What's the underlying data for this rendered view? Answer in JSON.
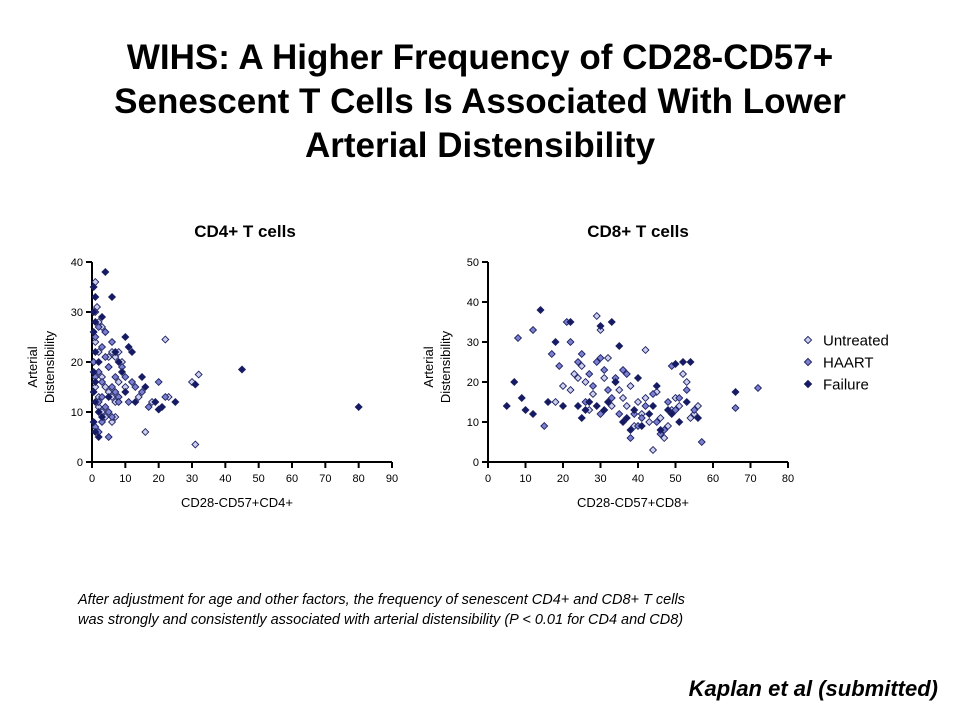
{
  "slide": {
    "title_lines": [
      "WIHS: A Higher Frequency of CD28-CD57+",
      "Senescent T Cells Is Associated With Lower",
      "Arterial Distensibility"
    ],
    "caption_lines": [
      "After adjustment for age and other factors, the frequency of senescent CD4+ and CD8+ T cells",
      "was strongly and consistently associated with arterial distensibility (P < 0.01 for CD4 and CD8)"
    ],
    "citation": "Kaplan et al (submitted)"
  },
  "colors": {
    "Untreated": "#ccd0ee",
    "HAART": "#7a7fd0",
    "Failure": "#141a66",
    "outline": "#1c2060"
  },
  "legend": {
    "placement": "right of CD8+ chart",
    "entries": [
      "Untreated",
      "HAART",
      "Failure"
    ]
  },
  "chart_data": [
    {
      "type": "scatter",
      "title": "CD4+ T cells",
      "xlabel": "CD28-CD57+CD4+",
      "ylabel": [
        "Arterial",
        "Distensibility"
      ],
      "xlim": [
        0,
        90
      ],
      "ylim": [
        0,
        40
      ],
      "xticks": [
        0,
        10,
        20,
        30,
        40,
        50,
        60,
        70,
        80,
        90
      ],
      "yticks": [
        0,
        10,
        20,
        30,
        40
      ],
      "grid": false,
      "series": [
        {
          "name": "Untreated",
          "points": [
            [
              1,
              36
            ],
            [
              1.5,
              31
            ],
            [
              2,
              28
            ],
            [
              3,
              27
            ],
            [
              4,
              26
            ],
            [
              1,
              24
            ],
            [
              2,
              22
            ],
            [
              5,
              21
            ],
            [
              6,
              22
            ],
            [
              7,
              21
            ],
            [
              8,
              22
            ],
            [
              9,
              20
            ],
            [
              3,
              17
            ],
            [
              4,
              15
            ],
            [
              5,
              14
            ],
            [
              6,
              13
            ],
            [
              7,
              12
            ],
            [
              2,
              11
            ],
            [
              3,
              10
            ],
            [
              4,
              9
            ],
            [
              6,
              8
            ],
            [
              5,
              19
            ],
            [
              8,
              16
            ],
            [
              10,
              15
            ],
            [
              14,
              13
            ],
            [
              16,
              6
            ],
            [
              18,
              12
            ],
            [
              22,
              24.5
            ],
            [
              23,
              13
            ],
            [
              30,
              16
            ],
            [
              31,
              3.5
            ],
            [
              32,
              17.5
            ],
            [
              1,
              15
            ],
            [
              2,
              13
            ],
            [
              7,
              9
            ]
          ]
        },
        {
          "name": "HAART",
          "points": [
            [
              1,
              30
            ],
            [
              2,
              27
            ],
            [
              1,
              25
            ],
            [
              3,
              23
            ],
            [
              4,
              21
            ],
            [
              5,
              19
            ],
            [
              2,
              18
            ],
            [
              1,
              17
            ],
            [
              3,
              16
            ],
            [
              6,
              15
            ],
            [
              7,
              14
            ],
            [
              8,
              13
            ],
            [
              2,
              12
            ],
            [
              4,
              11
            ],
            [
              5,
              10
            ],
            [
              6,
              9
            ],
            [
              3,
              8
            ],
            [
              1,
              7
            ],
            [
              2,
              6
            ],
            [
              5,
              5
            ],
            [
              9,
              19
            ],
            [
              10,
              17
            ],
            [
              12,
              16
            ],
            [
              13,
              15
            ],
            [
              15,
              14
            ],
            [
              20,
              16
            ],
            [
              4,
              26
            ],
            [
              6,
              24
            ],
            [
              8,
              12
            ],
            [
              11,
              12
            ],
            [
              17,
              11
            ],
            [
              22,
              13
            ],
            [
              0.5,
              20
            ],
            [
              3,
              13
            ],
            [
              7,
              17
            ]
          ]
        },
        {
          "name": "Failure",
          "points": [
            [
              0.5,
              35
            ],
            [
              1,
              33
            ],
            [
              0.5,
              30
            ],
            [
              1,
              28
            ],
            [
              0.5,
              26
            ],
            [
              1,
              22
            ],
            [
              2,
              20
            ],
            [
              0.5,
              18
            ],
            [
              1,
              16
            ],
            [
              0.5,
              14
            ],
            [
              1,
              12
            ],
            [
              2,
              10
            ],
            [
              3,
              9
            ],
            [
              0.5,
              8
            ],
            [
              1,
              6
            ],
            [
              2,
              5
            ],
            [
              4,
              38
            ],
            [
              6,
              33
            ],
            [
              10,
              25
            ],
            [
              11,
              23
            ],
            [
              12,
              22
            ],
            [
              8,
              20
            ],
            [
              9,
              18
            ],
            [
              10,
              14
            ],
            [
              15,
              17
            ],
            [
              16,
              15
            ],
            [
              19,
              12
            ],
            [
              21,
              11
            ],
            [
              25,
              12
            ],
            [
              31,
              15.5
            ],
            [
              45,
              18.5
            ],
            [
              80,
              11
            ],
            [
              3,
              29
            ],
            [
              5,
              13
            ],
            [
              7,
              22
            ],
            [
              13,
              12
            ],
            [
              20,
              10.5
            ]
          ]
        }
      ]
    },
    {
      "type": "scatter",
      "title": "CD8+ T cells",
      "xlabel": "CD28-CD57+CD8+",
      "ylabel": [
        "Arterial",
        "Distensibility"
      ],
      "xlim": [
        0,
        80
      ],
      "ylim": [
        0,
        50
      ],
      "xticks": [
        0,
        10,
        20,
        30,
        40,
        50,
        60,
        70,
        80
      ],
      "yticks": [
        0,
        10,
        20,
        30,
        40,
        50
      ],
      "grid": false,
      "series": [
        {
          "name": "Untreated",
          "points": [
            [
              18,
              15
            ],
            [
              20,
              19
            ],
            [
              22,
              18
            ],
            [
              23,
              22
            ],
            [
              24,
              21
            ],
            [
              25,
              24
            ],
            [
              26,
              20
            ],
            [
              28,
              17
            ],
            [
              29,
              36.5
            ],
            [
              30,
              33
            ],
            [
              31,
              21
            ],
            [
              32,
              26
            ],
            [
              34,
              20
            ],
            [
              35,
              18
            ],
            [
              36,
              16
            ],
            [
              37,
              14
            ],
            [
              38,
              19
            ],
            [
              40,
              15
            ],
            [
              41,
              12
            ],
            [
              42,
              16
            ],
            [
              43,
              10
            ],
            [
              44,
              3
            ],
            [
              45,
              17.5
            ],
            [
              46,
              11
            ],
            [
              47,
              6
            ],
            [
              48,
              9
            ],
            [
              49,
              13
            ],
            [
              50,
              16
            ],
            [
              51,
              14
            ],
            [
              52,
              22
            ],
            [
              53,
              20
            ],
            [
              55,
              12
            ],
            [
              56,
              14
            ],
            [
              27,
              13
            ],
            [
              33,
              14
            ],
            [
              39,
              9
            ],
            [
              54,
              11
            ],
            [
              42,
              28
            ]
          ]
        },
        {
          "name": "HAART",
          "points": [
            [
              8,
              31
            ],
            [
              12,
              33
            ],
            [
              15,
              9
            ],
            [
              17,
              27
            ],
            [
              19,
              24
            ],
            [
              21,
              35
            ],
            [
              22,
              30
            ],
            [
              24,
              25
            ],
            [
              25,
              27
            ],
            [
              26,
              15
            ],
            [
              27,
              22
            ],
            [
              28,
              19
            ],
            [
              29,
              25
            ],
            [
              30,
              26
            ],
            [
              31,
              23
            ],
            [
              32,
              18
            ],
            [
              33,
              16
            ],
            [
              34,
              21
            ],
            [
              35,
              12
            ],
            [
              36,
              23
            ],
            [
              37,
              22
            ],
            [
              38,
              6
            ],
            [
              39,
              12
            ],
            [
              40,
              9
            ],
            [
              41,
              11
            ],
            [
              42,
              14
            ],
            [
              45,
              10
            ],
            [
              46,
              7
            ],
            [
              47,
              8
            ],
            [
              48,
              15
            ],
            [
              49,
              24
            ],
            [
              50,
              13
            ],
            [
              51,
              16
            ],
            [
              53,
              18
            ],
            [
              55,
              13
            ],
            [
              57,
              5
            ],
            [
              66,
              13.5
            ],
            [
              72,
              18.5
            ],
            [
              30,
              12
            ],
            [
              44,
              17
            ]
          ]
        },
        {
          "name": "Failure",
          "points": [
            [
              5,
              14
            ],
            [
              7,
              20
            ],
            [
              9,
              16
            ],
            [
              10,
              13
            ],
            [
              12,
              12
            ],
            [
              14,
              38
            ],
            [
              16,
              15
            ],
            [
              18,
              30
            ],
            [
              20,
              14
            ],
            [
              22,
              35
            ],
            [
              24,
              14
            ],
            [
              26,
              13
            ],
            [
              27,
              15
            ],
            [
              29,
              14
            ],
            [
              30,
              34
            ],
            [
              31,
              13
            ],
            [
              32,
              15
            ],
            [
              33,
              35
            ],
            [
              34,
              20
            ],
            [
              36,
              10
            ],
            [
              37,
              11
            ],
            [
              38,
              8
            ],
            [
              39,
              13
            ],
            [
              40,
              21
            ],
            [
              41,
              9
            ],
            [
              43,
              12
            ],
            [
              45,
              19
            ],
            [
              46,
              8
            ],
            [
              48,
              13
            ],
            [
              49,
              12
            ],
            [
              51,
              10
            ],
            [
              52,
              25
            ],
            [
              54,
              25
            ],
            [
              56,
              11
            ],
            [
              66,
              17.5
            ],
            [
              35,
              29
            ],
            [
              25,
              11
            ],
            [
              44,
              14
            ],
            [
              50,
              24.5
            ],
            [
              53,
              15
            ]
          ]
        }
      ]
    }
  ]
}
